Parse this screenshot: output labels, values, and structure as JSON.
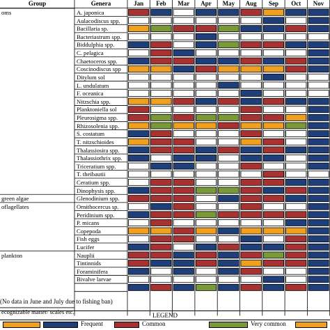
{
  "headers": {
    "group": "Group",
    "genera": "Genera",
    "months": [
      "Jan",
      "Feb",
      "Mar",
      "Apr",
      "May",
      "Aug",
      "Sep",
      "Oct",
      "Nov"
    ]
  },
  "colors": {
    "F": "#1f3f7a",
    "C": "#a83232",
    "V": "#7a9a3a",
    "A": "#f0a020",
    "W": "#ffffff"
  },
  "groups": [
    {
      "label": "oms",
      "row": 0
    },
    {
      "label": "green algae",
      "row": 23
    },
    {
      "label": "oflagellates",
      "row": 24
    },
    {
      "label": "plankton",
      "row": 30
    },
    {
      "label": "ecognizable matter/ scales etc.",
      "row": 37
    }
  ],
  "rows": [
    {
      "genus": "A. japonica",
      "cells": "CFWFFCAFF"
    },
    {
      "genus": "Aulacodiscus spp.",
      "cells": "WWWWWWFWF"
    },
    {
      "genus": "Bacillaria sp.",
      "cells": "AVCCVFFCF"
    },
    {
      "genus": "Bacteriastrum spp.",
      "cells": "WWWFWWWWW"
    },
    {
      "genus": "Biddulphia spp.",
      "cells": "FCWFVCCFF"
    },
    {
      "genus": "C. pelagica",
      "cells": "WCFWWWWWF"
    },
    {
      "genus": "Chaetoceros spp.",
      "cells": "FCCFFCFCF"
    },
    {
      "genus": "Coscinodiscus spp",
      "cells": "AAFCAAACF"
    },
    {
      "genus": "Ditylum sol",
      "cells": "WWWWWWFWW"
    },
    {
      "genus": "L. undulatum",
      "cells": "WWWWFWWWW"
    },
    {
      "genus": "F. oceanica",
      "cells": "WWWWWFWWW"
    },
    {
      "genus": "Nitzschia spp.",
      "cells": "AACFCFCFF"
    },
    {
      "genus": "Planktoniella sol",
      "cells": "CWWWWCWWF"
    },
    {
      "genus": "Pleurosigma spp.",
      "cells": "CVCVVCCAF"
    },
    {
      "genus": "Rhizosolenia spp.",
      "cells": "AVAACAAVF"
    },
    {
      "genus": "S. costatum",
      "cells": "FCWWWCWWF"
    },
    {
      "genus": "T. nitzschioides",
      "cells": "ACCWWACWF"
    },
    {
      "genus": "Thalassiosira spp.",
      "cells": "FCCFCFCFF"
    },
    {
      "genus": "Thalassiothrix spp.",
      "cells": "FWFFWFFWF"
    },
    {
      "genus": "Triceratium spp.",
      "cells": "WFFWWCWWF"
    },
    {
      "genus": "T. theibautii",
      "cells": "WWWWWWCWW"
    },
    {
      "genus": "Ceratium spp.",
      "cells": "WCCWWCCFF"
    },
    {
      "genus": "Dinophysis spp.",
      "cells": "FCCVVCFCF"
    },
    {
      "genus": "Glenodinium spp.",
      "cells": "CCCWFCCFF"
    },
    {
      "genus": "Ornithocercus sp.",
      "cells": "WFCWWCWWF"
    },
    {
      "genus": "Peridinium spp.",
      "cells": "FCCVCCCCF"
    },
    {
      "genus": "P. micans",
      "cells": "WCWWWWWFF"
    },
    {
      "genus": "Copepoda",
      "cells": "AACAFAAAF"
    },
    {
      "genus": "Fish eggs",
      "cells": "WCCWWFWCF"
    },
    {
      "genus": "Lucifer",
      "cells": "FCWFCFFCF"
    },
    {
      "genus": "Nauplii",
      "cells": "CCFCFCVCF"
    },
    {
      "genus": "Tintinnids",
      "cells": "CFFCFACCF"
    },
    {
      "genus": "Foraminifera",
      "cells": "FWFWFCWWF"
    },
    {
      "genus": "Bivalve larvae",
      "cells": "WWWWWWFWF"
    },
    {
      "genus": "",
      "cells": "FCFVFCFCF"
    }
  ],
  "note": "(No data in June and July due to fishing ban)",
  "legend": {
    "title": "LEGEND",
    "frequent": "Frequent",
    "common": "Common",
    "very_common": "Very common"
  }
}
